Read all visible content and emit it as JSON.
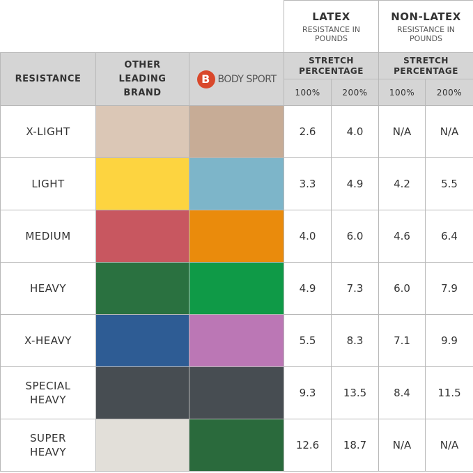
{
  "header": {
    "resistance_label": "RESISTANCE",
    "other_brand_label": "OTHER LEADING BRAND",
    "logo_letter": "B",
    "logo_text": "BODY SPORT",
    "groups": [
      {
        "title": "LATEX",
        "subtitle": "RESISTANCE IN POUNDS",
        "stretch_label": "STRETCH PERCENTAGE",
        "columns": [
          "100%",
          "200%"
        ]
      },
      {
        "title": "NON-LATEX",
        "subtitle": "RESISTANCE IN POUNDS",
        "stretch_label": "STRETCH PERCENTAGE",
        "columns": [
          "100%",
          "200%"
        ]
      }
    ]
  },
  "rows": [
    {
      "resistance": "X-LIGHT",
      "other_color": "#dbc7b6",
      "bodysport_color": "#c7ac96",
      "latex": [
        "2.6",
        "4.0"
      ],
      "non_latex": [
        "N/A",
        "N/A"
      ]
    },
    {
      "resistance": "LIGHT",
      "other_color": "#fdd440",
      "bodysport_color": "#7db5c9",
      "latex": [
        "3.3",
        "4.9"
      ],
      "non_latex": [
        "4.2",
        "5.5"
      ]
    },
    {
      "resistance": "MEDIUM",
      "other_color": "#c85760",
      "bodysport_color": "#ea8b0c",
      "latex": [
        "4.0",
        "6.0"
      ],
      "non_latex": [
        "4.6",
        "6.4"
      ]
    },
    {
      "resistance": "HEAVY",
      "other_color": "#2a7140",
      "bodysport_color": "#0f9a47",
      "latex": [
        "4.9",
        "7.3"
      ],
      "non_latex": [
        "6.0",
        "7.9"
      ]
    },
    {
      "resistance": "X-HEAVY",
      "other_color": "#2e5c94",
      "bodysport_color": "#bb77b5",
      "latex": [
        "5.5",
        "8.3"
      ],
      "non_latex": [
        "7.1",
        "9.9"
      ]
    },
    {
      "resistance": "SPECIAL HEAVY",
      "other_color": "#474d52",
      "bodysport_color": "#474d52",
      "latex": [
        "9.3",
        "13.5"
      ],
      "non_latex": [
        "8.4",
        "11.5"
      ]
    },
    {
      "resistance": "SUPER HEAVY",
      "other_color": "#e2dfd9",
      "bodysport_color": "#2a6a3c",
      "latex": [
        "12.6",
        "18.7"
      ],
      "non_latex": [
        "N/A",
        "N/A"
      ]
    }
  ]
}
